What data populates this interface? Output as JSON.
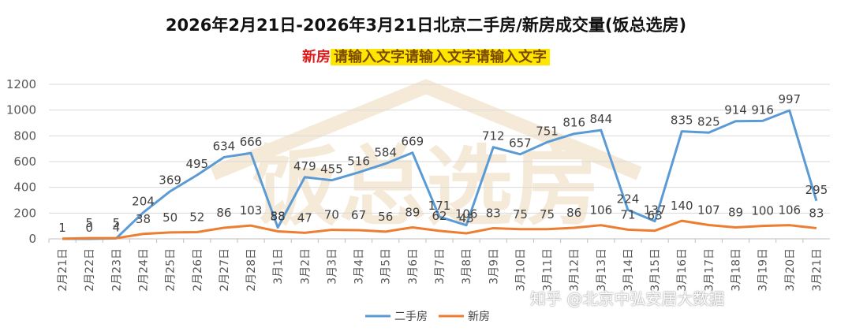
{
  "title": "2026年2月21日-2026年3月21日北京二手房/新房成交量(饭总选房)",
  "subtitle": {
    "prefix": "新房",
    "text": "请输入文字请输入文字请输入文字"
  },
  "watermark": {
    "logo_text": "饭总选房",
    "credit": "知乎 @北京中弘安居大数据"
  },
  "colors": {
    "second_hand": "#5b9bd5",
    "new_home": "#ed7d31",
    "grid": "#d9d9d9",
    "axis_text": "#595959",
    "title_color": "#111111"
  },
  "chart_data": {
    "type": "line",
    "title": "2026年2月21日-2026年3月21日北京二手房/新房成交量(饭总选房)",
    "xlabel": "",
    "ylabel": "",
    "ylim": [
      0,
      1200
    ],
    "yticks": [
      0,
      200,
      400,
      600,
      800,
      1000,
      1200
    ],
    "grid": true,
    "legend_position": "bottom",
    "categories": [
      "2月21日",
      "2月22日",
      "2月23日",
      "2月24日",
      "2月25日",
      "2月26日",
      "2月27日",
      "2月28日",
      "3月1日",
      "3月2日",
      "3月3日",
      "3月4日",
      "3月5日",
      "3月6日",
      "3月7日",
      "3月8日",
      "3月9日",
      "3月10日",
      "3月11日",
      "3月12日",
      "3月13日",
      "3月14日",
      "3月15日",
      "3月16日",
      "3月17日",
      "3月18日",
      "3月19日",
      "3月20日",
      "3月21日"
    ],
    "series": [
      {
        "name": "二手房",
        "values": [
          1,
          0,
          4,
          204,
          369,
          495,
          634,
          666,
          88,
          479,
          455,
          516,
          584,
          669,
          171,
          106,
          712,
          657,
          751,
          816,
          844,
          224,
          137,
          835,
          825,
          914,
          916,
          997,
          295
        ],
        "labels": [
          "1",
          "0",
          "4",
          "204",
          "369",
          "495",
          "634",
          "666",
          "88",
          "479",
          "455",
          "516",
          "584",
          "669",
          "171",
          "106",
          "712",
          "657",
          "751",
          "816",
          "844",
          "224",
          "137",
          "835",
          "825",
          "914",
          "916",
          "997",
          "295"
        ]
      },
      {
        "name": "新房",
        "values": [
          1,
          5,
          5,
          38,
          50,
          52,
          86,
          103,
          58,
          47,
          70,
          67,
          56,
          89,
          62,
          43,
          83,
          75,
          75,
          86,
          106,
          71,
          63,
          140,
          107,
          89,
          100,
          106,
          83
        ],
        "labels": [
          "",
          "5",
          "5",
          "38",
          "50",
          "52",
          "86",
          "103",
          "58",
          "47",
          "70",
          "67",
          "56",
          "89",
          "62",
          "43",
          "83",
          "75",
          "75",
          "86",
          "106",
          "71",
          "63",
          "140",
          "107",
          "89",
          "100",
          "106",
          "83"
        ]
      }
    ]
  }
}
